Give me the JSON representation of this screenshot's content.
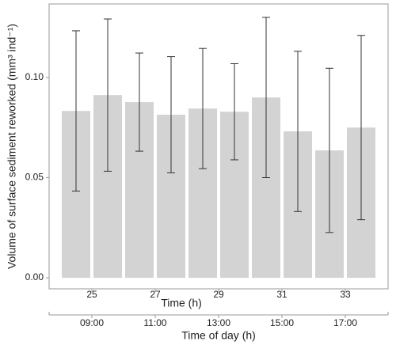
{
  "chart_data": {
    "type": "bar",
    "x": [
      24.5,
      25.5,
      26.5,
      27.5,
      28.5,
      29.5,
      30.5,
      31.5,
      32.5,
      33.5
    ],
    "values": [
      0.0833,
      0.0912,
      0.0877,
      0.0814,
      0.0845,
      0.0829,
      0.09,
      0.0731,
      0.0636,
      0.075
    ],
    "errors": [
      0.04,
      0.038,
      0.0245,
      0.029,
      0.03,
      0.024,
      0.04,
      0.04,
      0.041,
      0.046
    ],
    "color": "#d3d3d3",
    "error_color": "#333333",
    "xlim": [
      23.65,
      34.35
    ],
    "xticks": [
      25,
      27,
      29,
      31,
      33
    ],
    "x2ticks": [
      {
        "value": 25,
        "label": "09:00"
      },
      {
        "value": 27,
        "label": "11:00"
      },
      {
        "value": 29,
        "label": "13:00"
      },
      {
        "value": 31,
        "label": "15:00"
      },
      {
        "value": 33,
        "label": "17:00"
      }
    ],
    "ylim": [
      -0.0055,
      0.1367
    ],
    "yticks": [
      {
        "value": 0,
        "label": "0.00"
      },
      {
        "value": 0.05,
        "label": "0.05"
      },
      {
        "value": 0.1,
        "label": "0.10"
      }
    ],
    "xlabel": "Time (h)",
    "x2label": "Time of day (h)",
    "ylabel": "Volume of surface sediment reworked (mm³ ind⁻¹)"
  }
}
